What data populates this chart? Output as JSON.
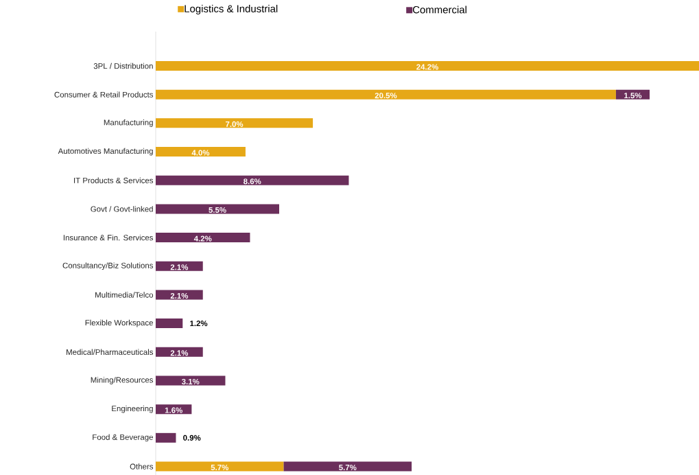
{
  "chart_data": {
    "type": "bar",
    "orientation": "horizontal",
    "stacked": true,
    "legend": "top",
    "tick_labels": "y",
    "xlim": [
      0,
      24.2
    ],
    "categories": [
      "3PL / Distribution",
      "Consumer & Retail Products",
      "Manufacturing",
      "Automotives Manufacturing",
      "IT Products & Services",
      "Govt / Govt-linked",
      "Insurance & Fin. Services",
      "Consultancy/Biz Solutions",
      "Multimedia/Telco",
      "Flexible Workspace",
      "Medical/Pharmaceuticals",
      "Mining/Resources",
      "Engineering",
      "Food & Beverage",
      "Others"
    ],
    "series": [
      {
        "name": "Logistics & Industrial",
        "color": "#e6a817",
        "values": [
          24.2,
          20.5,
          7.0,
          4.0,
          null,
          null,
          null,
          null,
          null,
          null,
          null,
          null,
          null,
          null,
          5.7
        ],
        "value_labels": [
          "24.2%",
          "20.5%",
          "7.0%",
          "4.0%",
          null,
          null,
          null,
          null,
          null,
          null,
          null,
          null,
          null,
          null,
          "5.7%"
        ]
      },
      {
        "name": "Commercial",
        "color": "#6b2f5b",
        "values": [
          null,
          1.5,
          null,
          null,
          8.6,
          5.5,
          4.2,
          2.1,
          2.1,
          1.2,
          2.1,
          3.1,
          1.6,
          0.9,
          5.7
        ],
        "value_labels": [
          null,
          "1.5%",
          null,
          null,
          "8.6%",
          "5.5%",
          "4.2%",
          "2.1%",
          "2.1%",
          "1.2%",
          "2.1%",
          "3.1%",
          "1.6%",
          "0.9%",
          "5.7%"
        ]
      }
    ]
  }
}
